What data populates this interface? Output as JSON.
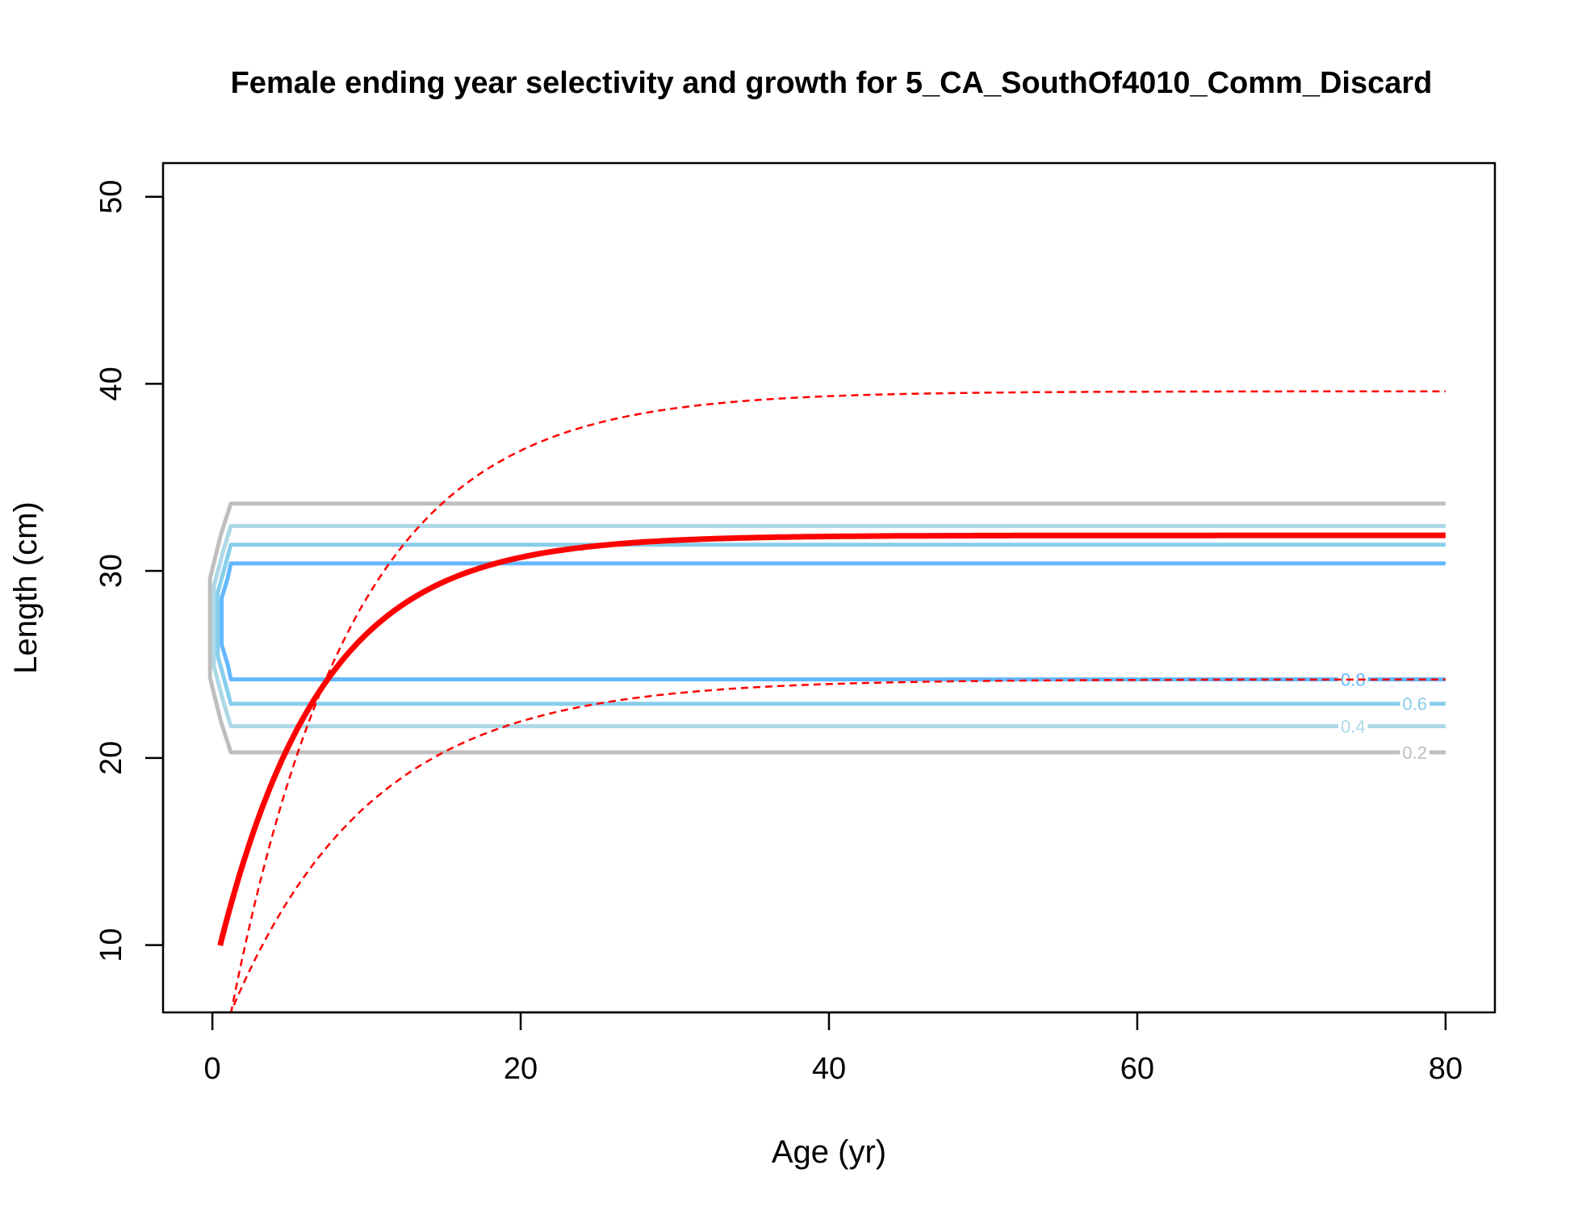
{
  "chart_data": {
    "type": "line",
    "title": "Female ending year selectivity and growth for 5_CA_SouthOf4010_Comm_Discard",
    "xlabel": "Age (yr)",
    "ylabel": "Length (cm)",
    "xlim": [
      -3.2,
      83.2
    ],
    "ylim": [
      6.4,
      51.8
    ],
    "xticks": [
      0,
      20,
      40,
      60,
      80
    ],
    "yticks": [
      10,
      20,
      30,
      40,
      50
    ],
    "grid": false,
    "growth": {
      "color": "#ff0000",
      "linf": 31.9,
      "k": 0.15,
      "t0": -2.0,
      "age_min": 0.5,
      "age_max": 80,
      "upper_bound": {
        "linf": 39.6,
        "k": 0.125,
        "t0": -0.2
      },
      "lower_bound": {
        "linf": 24.2,
        "k": 0.11,
        "t0": -1.6
      }
    },
    "selectivity_contours": [
      {
        "level": "0.2",
        "low": 20.3,
        "high": 33.6,
        "color": "#bebebe",
        "label_on_line": "high",
        "label_pos": "low"
      },
      {
        "level": "0.4",
        "low": 21.7,
        "high": 32.4,
        "color": "#add8e6",
        "label_pos": "low"
      },
      {
        "level": "0.6",
        "low": 22.9,
        "high": 31.4,
        "color": "#87ceeb",
        "label_pos": "low"
      },
      {
        "level": "0.8",
        "low": 24.2,
        "high": 30.4,
        "color": "#63b8ff",
        "label_pos": "low"
      }
    ],
    "contour_age_range": [
      0.2,
      80
    ]
  }
}
